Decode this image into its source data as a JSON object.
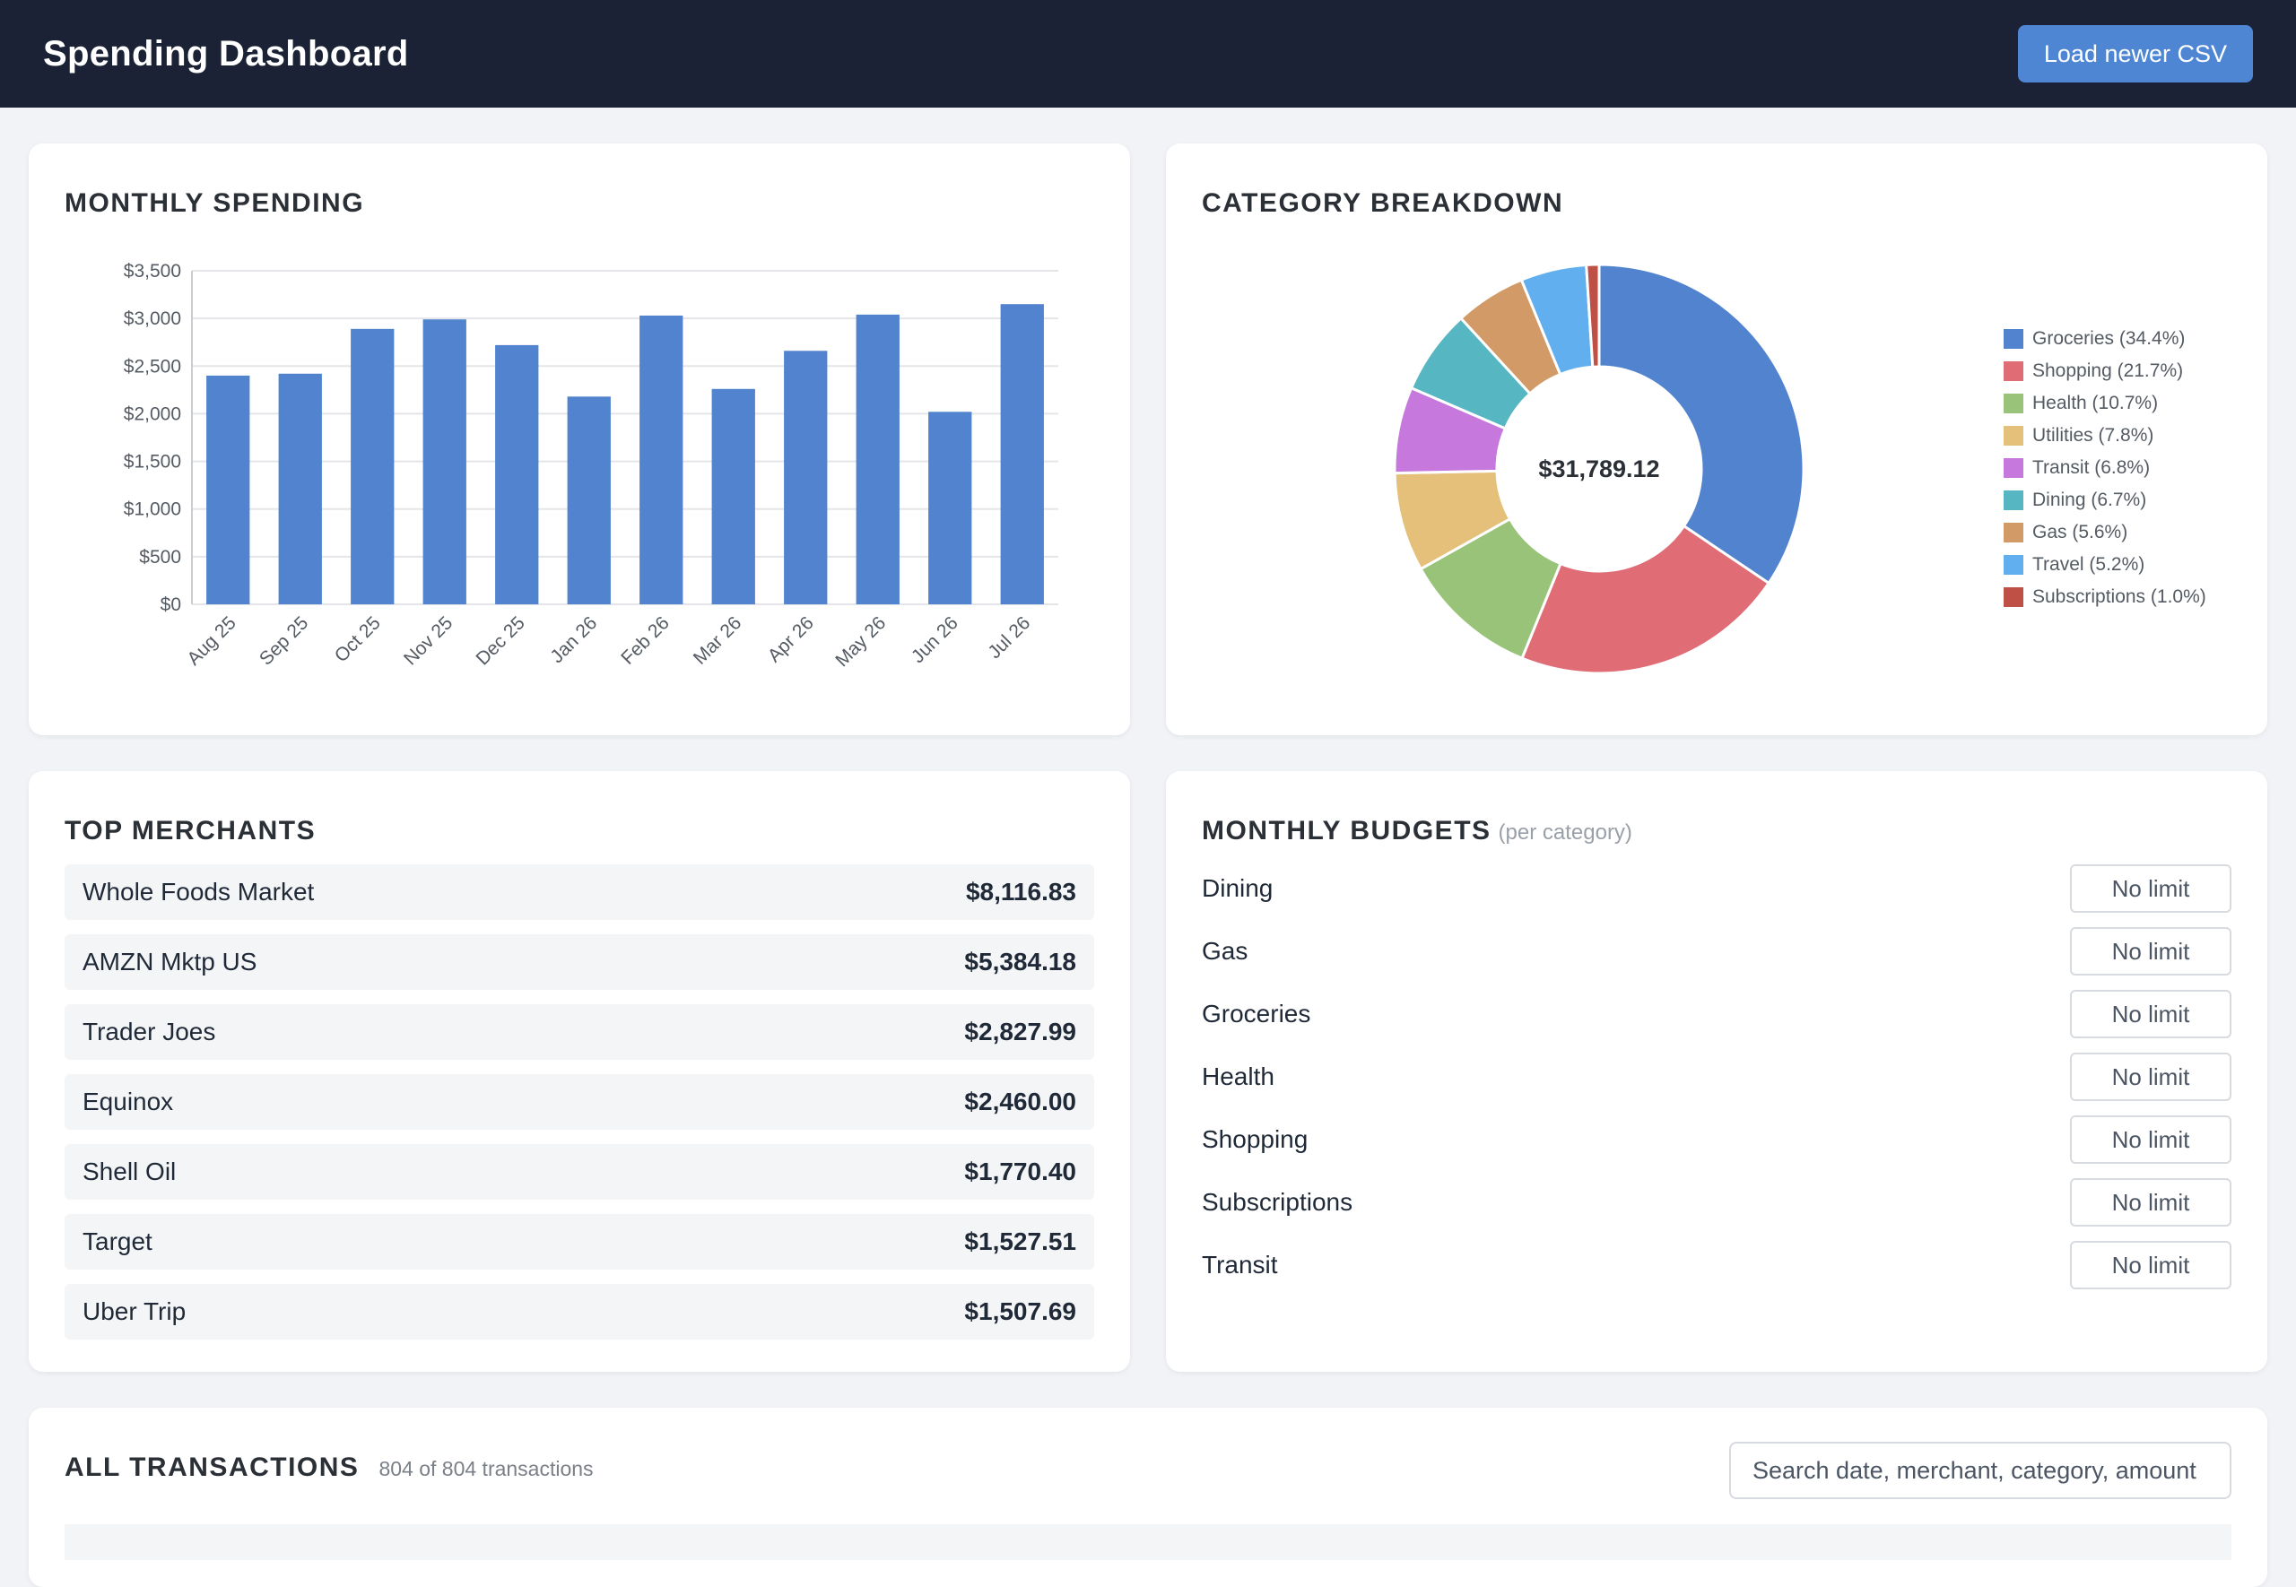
{
  "header": {
    "title": "Spending Dashboard",
    "load_button": "Load newer CSV"
  },
  "monthly": {
    "title": "MONTHLY SPENDING"
  },
  "category": {
    "title": "CATEGORY BREAKDOWN",
    "total": "$31,789.12"
  },
  "merchants": {
    "title": "TOP MERCHANTS",
    "items": [
      {
        "name": "Whole Foods Market",
        "amount": "$8,116.83"
      },
      {
        "name": "AMZN Mktp US",
        "amount": "$5,384.18"
      },
      {
        "name": "Trader Joes",
        "amount": "$2,827.99"
      },
      {
        "name": "Equinox",
        "amount": "$2,460.00"
      },
      {
        "name": "Shell Oil",
        "amount": "$1,770.40"
      },
      {
        "name": "Target",
        "amount": "$1,527.51"
      },
      {
        "name": "Uber Trip",
        "amount": "$1,507.69"
      }
    ]
  },
  "budgets": {
    "title": "MONTHLY BUDGETS",
    "subtitle": "(per category)",
    "items": [
      {
        "category": "Dining",
        "placeholder": "No limit"
      },
      {
        "category": "Gas",
        "placeholder": "No limit"
      },
      {
        "category": "Groceries",
        "placeholder": "No limit"
      },
      {
        "category": "Health",
        "placeholder": "No limit"
      },
      {
        "category": "Shopping",
        "placeholder": "No limit"
      },
      {
        "category": "Subscriptions",
        "placeholder": "No limit"
      },
      {
        "category": "Transit",
        "placeholder": "No limit"
      }
    ]
  },
  "transactions": {
    "title": "ALL TRANSACTIONS",
    "count": "804 of 804 transactions",
    "search_placeholder": "Search date, merchant, category, amount"
  },
  "chart_data": [
    {
      "type": "bar",
      "categories": [
        "Aug 25",
        "Sep 25",
        "Oct 25",
        "Nov 25",
        "Dec 25",
        "Jan 26",
        "Feb 26",
        "Mar 26",
        "Apr 26",
        "May 26",
        "Jun 26",
        "Jul 26"
      ],
      "values": [
        2400,
        2420,
        2890,
        2990,
        2720,
        2180,
        3030,
        2260,
        2660,
        3040,
        2020,
        3150
      ],
      "ylim": [
        0,
        3500
      ],
      "yticks": [
        "$0",
        "$500",
        "$1,000",
        "$1,500",
        "$2,000",
        "$2,500",
        "$3,000",
        "$3,500"
      ],
      "grid": true,
      "color": "#5283cf"
    },
    {
      "type": "pie",
      "donut": true,
      "center_label": "$31,789.12",
      "legend_position": "right",
      "slices": [
        {
          "label": "Groceries (34.4%)",
          "value": 34.4,
          "color": "#5283cf"
        },
        {
          "label": "Shopping (21.7%)",
          "value": 21.7,
          "color": "#e06c75"
        },
        {
          "label": "Health (10.7%)",
          "value": 10.7,
          "color": "#98c379"
        },
        {
          "label": "Utilities (7.8%)",
          "value": 7.8,
          "color": "#e5c07b"
        },
        {
          "label": "Transit (6.8%)",
          "value": 6.8,
          "color": "#c678dd"
        },
        {
          "label": "Dining (6.7%)",
          "value": 6.7,
          "color": "#56b6c2"
        },
        {
          "label": "Gas (5.6%)",
          "value": 5.6,
          "color": "#d19a66"
        },
        {
          "label": "Travel (5.2%)",
          "value": 5.2,
          "color": "#61afef"
        },
        {
          "label": "Subscriptions (1.0%)",
          "value": 1.0,
          "color": "#be5046"
        }
      ]
    }
  ]
}
